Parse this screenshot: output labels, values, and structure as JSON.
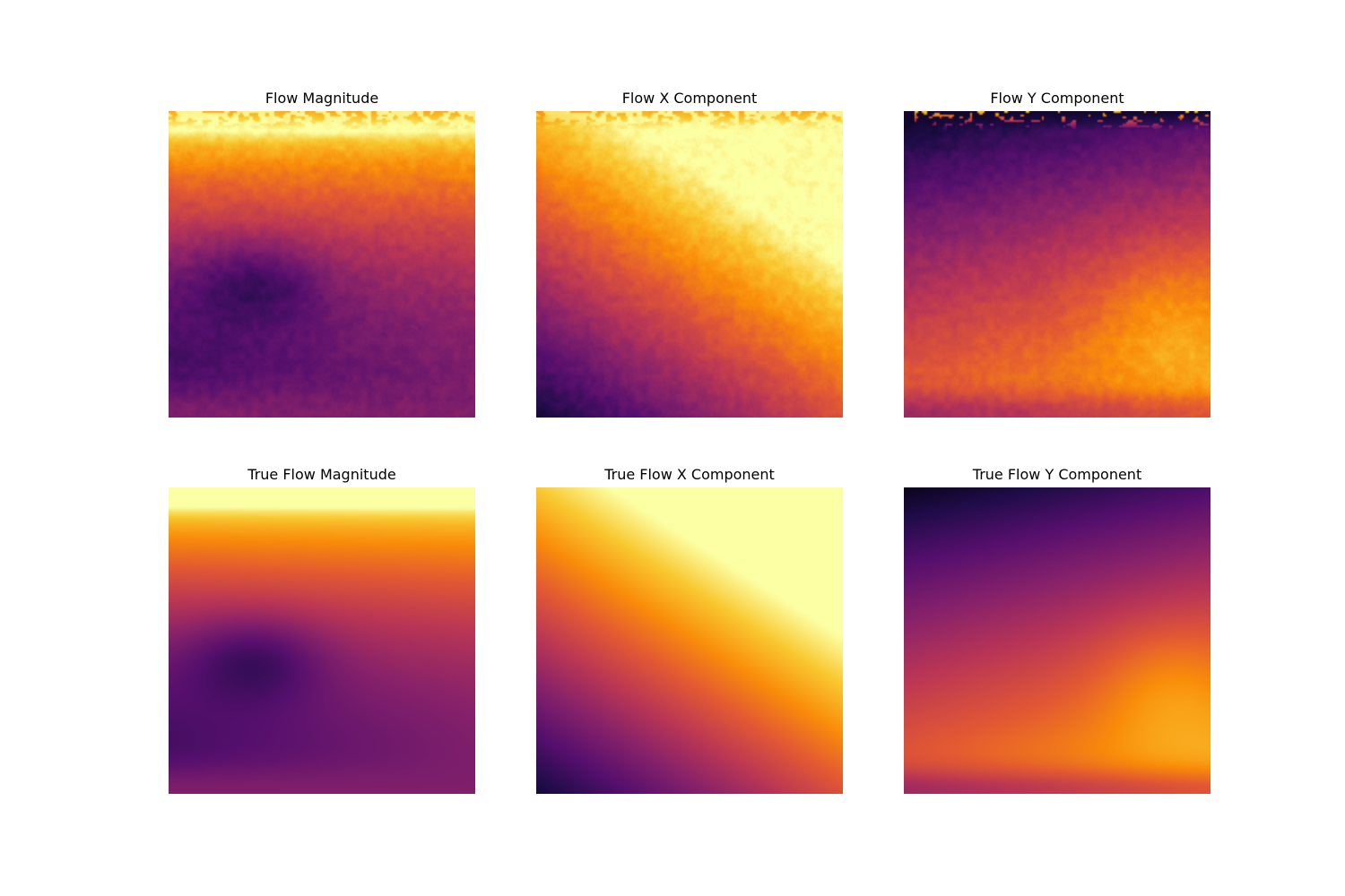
{
  "chart_data": [
    {
      "type": "heatmap",
      "title": "Flow Magnitude",
      "colormap": "inferno",
      "field": "magnitude",
      "noisy": true,
      "axes_visible": false
    },
    {
      "type": "heatmap",
      "title": "Flow X Component",
      "colormap": "inferno",
      "field": "x",
      "noisy": true,
      "axes_visible": false
    },
    {
      "type": "heatmap",
      "title": "Flow Y Component",
      "colormap": "inferno",
      "field": "y",
      "noisy": true,
      "axes_visible": false
    },
    {
      "type": "heatmap",
      "title": "True Flow Magnitude",
      "colormap": "inferno",
      "field": "magnitude",
      "noisy": false,
      "axes_visible": false
    },
    {
      "type": "heatmap",
      "title": "True Flow X Component",
      "colormap": "inferno",
      "field": "x",
      "noisy": false,
      "axes_visible": false
    },
    {
      "type": "heatmap",
      "title": "True Flow Y Component",
      "colormap": "inferno",
      "field": "y",
      "noisy": false,
      "axes_visible": false
    }
  ]
}
